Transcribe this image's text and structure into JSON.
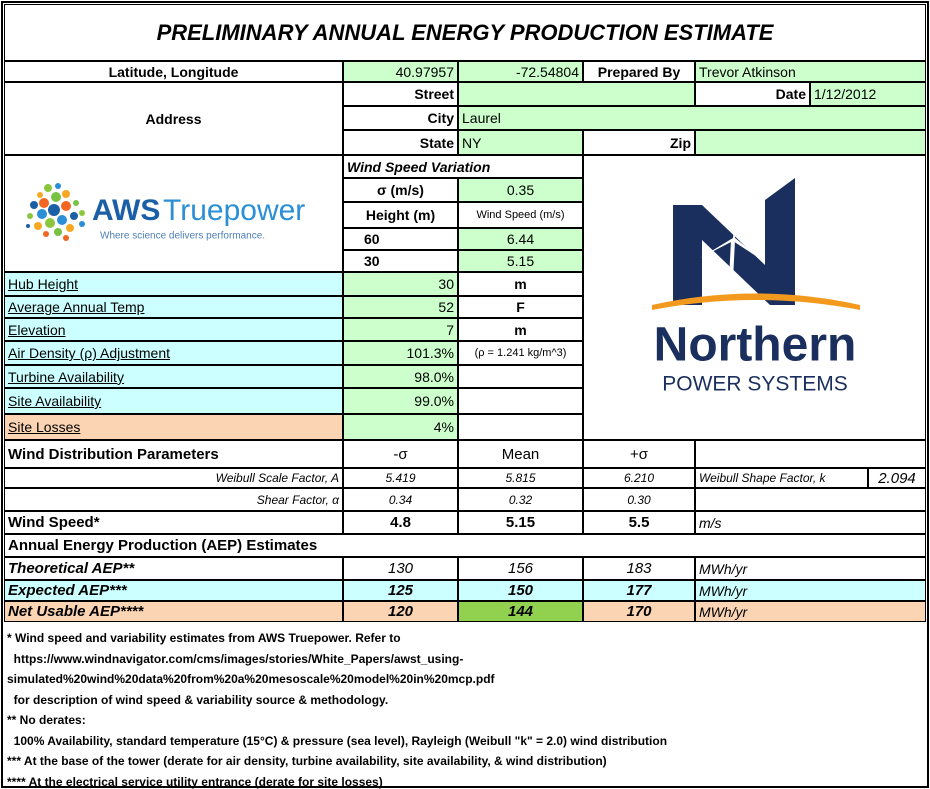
{
  "header": {
    "title": "PRELIMINARY ANNUAL ENERGY PRODUCTION ESTIMATE"
  },
  "location": {
    "lat_lon_label": "Latitude, Longitude",
    "latitude": "40.97957",
    "longitude": "-72.54804",
    "prepared_by_label": "Prepared By",
    "prepared_by": "Trevor Atkinson",
    "address_label": "Address",
    "street_label": "Street",
    "date_label": "Date",
    "date": "1/12/2012",
    "city_label": "City",
    "city": "Laurel",
    "state_label": "State",
    "state": "NY",
    "zip_label": "Zip"
  },
  "wind_speed_variation": {
    "title": "Wind Speed Variation",
    "sigma_label": "σ (m/s)",
    "sigma": "0.35",
    "height_label": "Height (m)",
    "speed_label": "Wind Speed (m/s)",
    "rows": [
      [
        "60",
        "6.44"
      ],
      [
        "30",
        "5.15"
      ]
    ]
  },
  "aws_logo": {
    "brand": "AWS",
    "name": "Truepower",
    "tagline": "Where science delivers performance."
  },
  "site": [
    {
      "label": "Hub Height",
      "value": "30",
      "unit": "m"
    },
    {
      "label": "Average Annual Temp",
      "value": "52",
      "unit": "F"
    },
    {
      "label": "Elevation",
      "value": "7",
      "unit": "m"
    },
    {
      "label": "Air Density (ρ) Adjustment",
      "value": "101.3%",
      "unit": "(ρ = 1.241 kg/m^3)"
    },
    {
      "label": "Turbine Availability",
      "value": "98.0%"
    },
    {
      "label": "Site Availability",
      "value": "99.0%"
    },
    {
      "label": "Site Losses",
      "value": "4%"
    }
  ],
  "northern_logo": {
    "name": "Northern",
    "subtitle": "POWER SYSTEMS"
  },
  "distribution": {
    "title": "Wind Distribution Parameters",
    "columns": [
      "-σ",
      "Mean",
      "+σ"
    ],
    "weibull_label": "Weibull Scale Factor, A",
    "weibull": [
      "5.419",
      "5.815",
      "6.210"
    ],
    "shape_label": "Weibull Shape Factor, k",
    "shape": "2.094",
    "shear_label": "Shear Factor, α",
    "shear": [
      "0.34",
      "0.32",
      "0.30"
    ],
    "speed_label": "Wind Speed*",
    "speed": [
      "4.8",
      "5.15",
      "5.5"
    ],
    "speed_unit": "m/s"
  },
  "aep": {
    "title": "Annual Energy Production (AEP) Estimates",
    "rows": [
      {
        "label": "Theoretical AEP**",
        "values": [
          "130",
          "156",
          "183"
        ],
        "unit": "MWh/yr"
      },
      {
        "label": "Expected AEP***",
        "values": [
          "125",
          "150",
          "177"
        ],
        "unit": "MWh/yr"
      },
      {
        "label": "Net Usable AEP****",
        "values": [
          "120",
          "144",
          "170"
        ],
        "unit": "MWh/yr"
      }
    ]
  },
  "notes": [
    "* Wind speed and variability estimates from AWS Truepower. Refer to",
    "  https://www.windnavigator.com/cms/images/stories/White_Papers/awst_using-",
    "simulated%20wind%20data%20from%20a%20mesoscale%20model%20in%20mcp.pdf",
    "  for description of wind speed & variability source & methodology.",
    "** No derates:",
    "  100% Availability, standard temperature (15°C) & pressure (sea level), Rayleigh (Weibull \"k\" = 2.0) wind distribution",
    "*** At the base of the tower (derate for air density, turbine availability, site availability, & wind distribution)",
    "**** At the electrical service utility entrance (derate for site losses)"
  ]
}
